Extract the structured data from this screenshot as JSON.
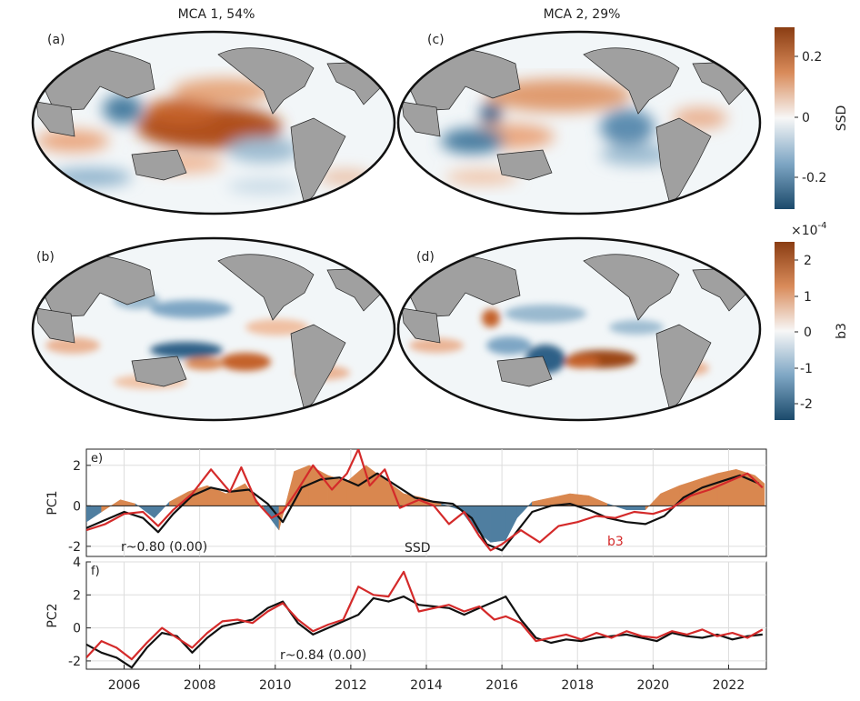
{
  "maps": {
    "titles": [
      "MCA 1, 54%",
      "MCA 2, 29%"
    ],
    "panel_letters": [
      "(a)",
      "(b)",
      "(c)",
      "(d)"
    ],
    "colorbars": [
      {
        "label": "SSD",
        "ticks": [
          "0.2",
          "0",
          "-0.2"
        ]
      },
      {
        "label": "b3",
        "exponent": "×10",
        "exponent_power": "-4",
        "ticks": [
          "2",
          "1",
          "0",
          "-1",
          "-2"
        ]
      }
    ],
    "colors": {
      "positive": "#c4622a",
      "negative": "#2b5d7e",
      "land": "#a0a0a0"
    }
  },
  "chart_data": [
    {
      "type": "line",
      "panel": "e)",
      "ylabel": "PC1",
      "ylim": [
        -2.5,
        2.8
      ],
      "xlim": [
        2005,
        2023
      ],
      "yticks": [
        "2",
        "0",
        "-2"
      ],
      "annotation": "r~0.80 (0.00)",
      "series": [
        {
          "name": "SSD",
          "color": "#111111",
          "x": [
            2005,
            2005.5,
            2006,
            2006.5,
            2006.9,
            2007.3,
            2007.8,
            2008.3,
            2008.8,
            2009.3,
            2009.8,
            2010.2,
            2010.7,
            2011.2,
            2011.7,
            2012.2,
            2012.7,
            2013.2,
            2013.7,
            2014.2,
            2014.7,
            2015.2,
            2015.6,
            2016,
            2016.3,
            2016.8,
            2017.3,
            2017.8,
            2018.3,
            2018.8,
            2019.3,
            2019.8,
            2020.3,
            2020.8,
            2021.3,
            2021.8,
            2022.3,
            2022.8
          ],
          "y": [
            -1.1,
            -0.7,
            -0.3,
            -0.6,
            -1.3,
            -0.4,
            0.5,
            0.9,
            0.7,
            0.8,
            0.1,
            -0.8,
            0.9,
            1.3,
            1.4,
            1.0,
            1.6,
            1.0,
            0.4,
            0.2,
            0.1,
            -0.6,
            -1.9,
            -2.2,
            -1.5,
            -0.3,
            0.0,
            0.1,
            -0.2,
            -0.6,
            -0.8,
            -0.9,
            -0.5,
            0.4,
            0.9,
            1.2,
            1.5,
            1.1
          ]
        },
        {
          "name": "b3",
          "color": "#d42a2a",
          "x": [
            2005,
            2005.5,
            2006,
            2006.5,
            2006.9,
            2007.3,
            2007.8,
            2008.3,
            2008.8,
            2009.1,
            2009.5,
            2009.9,
            2010.2,
            2010.6,
            2011,
            2011.5,
            2011.9,
            2012.2,
            2012.5,
            2012.9,
            2013.3,
            2013.8,
            2014.2,
            2014.6,
            2015,
            2015.4,
            2015.7,
            2016,
            2016.5,
            2017,
            2017.5,
            2018,
            2018.5,
            2019,
            2019.5,
            2020,
            2020.5,
            2021,
            2021.5,
            2022,
            2022.5,
            2022.9
          ],
          "y": [
            -1.2,
            -0.9,
            -0.4,
            -0.3,
            -1.0,
            -0.2,
            0.6,
            1.8,
            0.7,
            1.9,
            0.2,
            -0.6,
            -0.3,
            0.8,
            2.0,
            0.8,
            1.6,
            2.8,
            1.0,
            1.8,
            -0.1,
            0.3,
            0.0,
            -0.9,
            -0.3,
            -1.5,
            -2.2,
            -1.9,
            -1.2,
            -1.8,
            -1.0,
            -0.8,
            -0.5,
            -0.6,
            -0.3,
            -0.4,
            -0.1,
            0.5,
            0.8,
            1.2,
            1.6,
            0.9
          ]
        }
      ],
      "area_series": {
        "name": "SSD",
        "positive_color": "#d9874f",
        "negative_color": "#4f7ea0",
        "x": [
          2005,
          2005.4,
          2005.9,
          2006.3,
          2006.8,
          2007.2,
          2007.7,
          2008.2,
          2008.7,
          2009.2,
          2009.7,
          2010.1,
          2010.5,
          2010.9,
          2011.4,
          2011.9,
          2012.4,
          2012.9,
          2013.4,
          2013.9,
          2014.4,
          2014.9,
          2015.3,
          2015.7,
          2016.1,
          2016.4,
          2016.8,
          2017.3,
          2017.8,
          2018.3,
          2018.8,
          2019.3,
          2019.8,
          2020.2,
          2020.7,
          2021.2,
          2021.7,
          2022.2,
          2022.7,
          2022.95
        ],
        "y": [
          -0.8,
          -0.3,
          0.3,
          0.1,
          -0.6,
          0.2,
          0.7,
          1.0,
          0.6,
          1.1,
          -0.2,
          -1.2,
          1.7,
          2.0,
          1.5,
          1.2,
          2.0,
          1.3,
          0.6,
          0.4,
          0.1,
          -0.2,
          -1.2,
          -1.8,
          -1.7,
          -0.6,
          0.2,
          0.4,
          0.6,
          0.5,
          0.1,
          -0.2,
          -0.2,
          0.6,
          1.0,
          1.3,
          1.6,
          1.8,
          1.5,
          1.1
        ]
      },
      "text_labels": [
        "SSD",
        "b3"
      ]
    },
    {
      "type": "line",
      "panel": "f)",
      "ylabel": "PC2",
      "ylim": [
        -2.5,
        4
      ],
      "xlim": [
        2005,
        2023
      ],
      "yticks": [
        "4",
        "2",
        "0",
        "-2"
      ],
      "xticks": [
        "2006",
        "2008",
        "2010",
        "2012",
        "2014",
        "2016",
        "2018",
        "2020",
        "2022"
      ],
      "annotation": "r~0.84 (0.00)",
      "series": [
        {
          "name": "SSD",
          "color": "#111111",
          "x": [
            2005,
            2005.4,
            2005.8,
            2006.2,
            2006.6,
            2007,
            2007.4,
            2007.8,
            2008.2,
            2008.6,
            2009,
            2009.4,
            2009.8,
            2010.2,
            2010.6,
            2011,
            2011.4,
            2011.8,
            2012.2,
            2012.6,
            2013,
            2013.4,
            2013.8,
            2014.2,
            2014.6,
            2015,
            2015.4,
            2015.8,
            2016.1,
            2016.5,
            2016.9,
            2017.3,
            2017.7,
            2018.1,
            2018.5,
            2018.9,
            2019.3,
            2019.7,
            2020.1,
            2020.5,
            2020.9,
            2021.3,
            2021.7,
            2022.1,
            2022.5,
            2022.9
          ],
          "y": [
            -1.0,
            -1.5,
            -1.8,
            -2.4,
            -1.2,
            -0.3,
            -0.5,
            -1.5,
            -0.6,
            0.1,
            0.3,
            0.5,
            1.2,
            1.6,
            0.3,
            -0.4,
            0.0,
            0.4,
            0.8,
            1.8,
            1.6,
            1.9,
            1.4,
            1.3,
            1.2,
            0.8,
            1.2,
            1.6,
            1.9,
            0.5,
            -0.6,
            -0.9,
            -0.7,
            -0.8,
            -0.6,
            -0.5,
            -0.4,
            -0.6,
            -0.8,
            -0.3,
            -0.5,
            -0.6,
            -0.4,
            -0.7,
            -0.5,
            -0.4
          ]
        },
        {
          "name": "b3",
          "color": "#d42a2a",
          "x": [
            2005,
            2005.4,
            2005.8,
            2006.2,
            2006.6,
            2007,
            2007.4,
            2007.8,
            2008.2,
            2008.6,
            2009,
            2009.4,
            2009.8,
            2010.2,
            2010.6,
            2011,
            2011.4,
            2011.8,
            2012.2,
            2012.6,
            2013,
            2013.4,
            2013.8,
            2014.2,
            2014.6,
            2015,
            2015.4,
            2015.8,
            2016.1,
            2016.5,
            2016.9,
            2017.3,
            2017.7,
            2018.1,
            2018.5,
            2018.9,
            2019.3,
            2019.7,
            2020.1,
            2020.5,
            2020.9,
            2021.3,
            2021.7,
            2022.1,
            2022.5,
            2022.9
          ],
          "y": [
            -1.8,
            -0.8,
            -1.2,
            -1.9,
            -0.9,
            0.0,
            -0.6,
            -1.2,
            -0.3,
            0.4,
            0.5,
            0.3,
            1.0,
            1.5,
            0.5,
            -0.2,
            0.2,
            0.5,
            2.5,
            2.0,
            1.9,
            3.4,
            1.0,
            1.2,
            1.4,
            1.0,
            1.3,
            0.5,
            0.7,
            0.3,
            -0.8,
            -0.6,
            -0.4,
            -0.7,
            -0.3,
            -0.6,
            -0.2,
            -0.5,
            -0.6,
            -0.2,
            -0.4,
            -0.1,
            -0.5,
            -0.3,
            -0.6,
            -0.1
          ]
        }
      ]
    }
  ]
}
